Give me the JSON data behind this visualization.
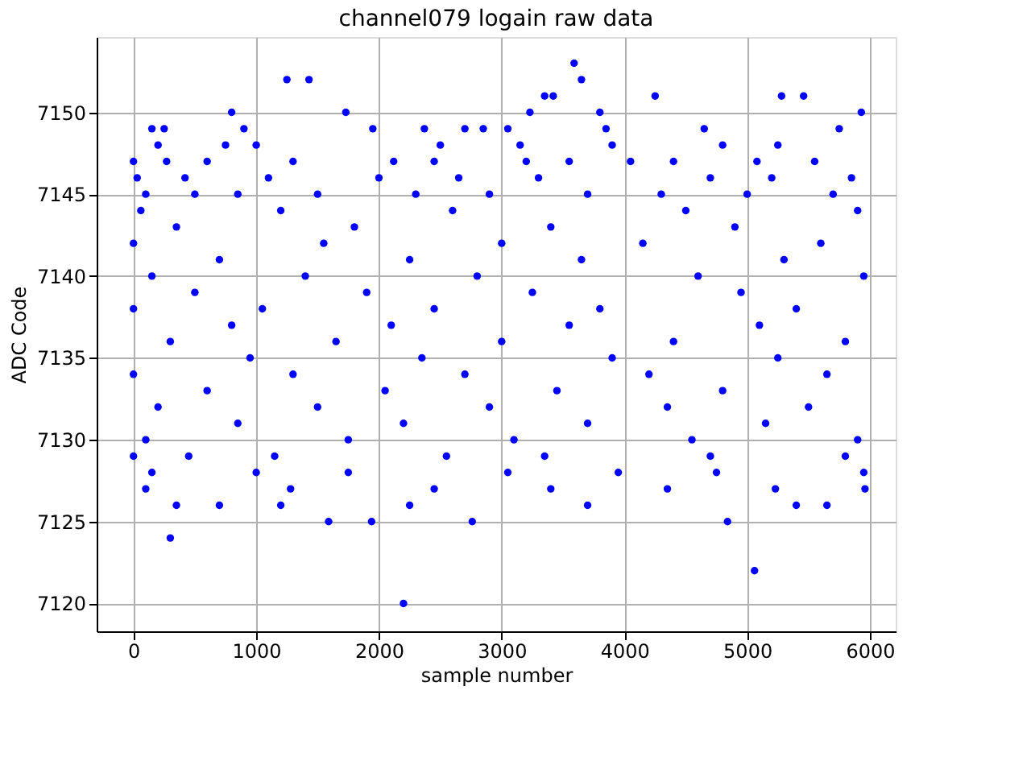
{
  "chart_data": {
    "type": "scatter",
    "title": "channel079 logain raw data",
    "xlabel": "sample number",
    "ylabel": "ADC Code",
    "xlim": [
      -300,
      6210
    ],
    "xticks": [
      0,
      1000,
      2000,
      3000,
      4000,
      5000,
      6000
    ],
    "ylim": [
      7118.3,
      7154.6
    ],
    "yticks": [
      7120,
      7125,
      7130,
      7135,
      7140,
      7145,
      7150
    ],
    "grid": true,
    "marker": "circle",
    "series": [
      {
        "color": "#0000ff",
        "x": [
          300,
          2200,
          5060,
          1590,
          1940,
          2760,
          4840,
          3590,
          1250,
          1430,
          3650,
          3350,
          3420,
          4250,
          5280,
          5460,
          5930,
          800,
          1730,
          3230,
          3800,
          150,
          250,
          900,
          1950,
          2370,
          2700,
          2850,
          3050,
          3850,
          4650,
          5750,
          200,
          750,
          1000,
          2500,
          3150,
          3900,
          4800,
          5250,
          0,
          270,
          600,
          1300,
          2120,
          2450,
          3200,
          3550,
          4050,
          4400,
          5080,
          5550,
          30,
          420,
          1100,
          2000,
          2650,
          3300,
          4700,
          5200,
          5850,
          100,
          500,
          850,
          1500,
          2300,
          2900,
          3700,
          4300,
          5000,
          5700,
          60,
          1200,
          2600,
          4500,
          5900,
          350,
          1800,
          3400,
          4900,
          0,
          1550,
          3000,
          4150,
          5600,
          700,
          2250,
          3650,
          5300,
          150,
          1400,
          2800,
          4600,
          5950,
          500,
          1900,
          3250,
          4950,
          0,
          1050,
          2450,
          3800,
          5400,
          800,
          2100,
          3550,
          5100,
          300,
          1650,
          3000,
          4400,
          5800,
          950,
          2350,
          3900,
          5250,
          0,
          1300,
          2700,
          4200,
          5650,
          600,
          2050,
          3450,
          4800,
          200,
          1500,
          2900,
          4350,
          5500,
          850,
          2200,
          3700,
          5150,
          100,
          1750,
          3100,
          4550,
          5900,
          0,
          450,
          1150,
          2550,
          3350,
          4700,
          5800,
          150,
          1000,
          1750,
          3050,
          3950,
          4750,
          5950,
          100,
          1280,
          2450,
          3400,
          4350,
          5230,
          5960,
          350,
          700,
          1200,
          2250,
          3700,
          5400,
          5650
        ],
        "values": [
          7124,
          7120,
          7122,
          7125,
          7125,
          7125,
          7125,
          7153,
          7152,
          7152,
          7152,
          7151,
          7151,
          7151,
          7151,
          7151,
          7150,
          7150,
          7150,
          7150,
          7150,
          7149,
          7149,
          7149,
          7149,
          7149,
          7149,
          7149,
          7149,
          7149,
          7149,
          7149,
          7148,
          7148,
          7148,
          7148,
          7148,
          7148,
          7148,
          7148,
          7147,
          7147,
          7147,
          7147,
          7147,
          7147,
          7147,
          7147,
          7147,
          7147,
          7147,
          7147,
          7146,
          7146,
          7146,
          7146,
          7146,
          7146,
          7146,
          7146,
          7146,
          7145,
          7145,
          7145,
          7145,
          7145,
          7145,
          7145,
          7145,
          7145,
          7145,
          7144,
          7144,
          7144,
          7144,
          7144,
          7143,
          7143,
          7143,
          7143,
          7142,
          7142,
          7142,
          7142,
          7142,
          7141,
          7141,
          7141,
          7141,
          7140,
          7140,
          7140,
          7140,
          7140,
          7139,
          7139,
          7139,
          7139,
          7138,
          7138,
          7138,
          7138,
          7138,
          7137,
          7137,
          7137,
          7137,
          7136,
          7136,
          7136,
          7136,
          7136,
          7135,
          7135,
          7135,
          7135,
          7134,
          7134,
          7134,
          7134,
          7134,
          7133,
          7133,
          7133,
          7133,
          7132,
          7132,
          7132,
          7132,
          7132,
          7131,
          7131,
          7131,
          7131,
          7130,
          7130,
          7130,
          7130,
          7130,
          7129,
          7129,
          7129,
          7129,
          7129,
          7129,
          7129,
          7128,
          7128,
          7128,
          7128,
          7128,
          7128,
          7128,
          7127,
          7127,
          7127,
          7127,
          7127,
          7127,
          7127,
          7126,
          7126,
          7126,
          7126,
          7126,
          7126,
          7126
        ]
      }
    ]
  }
}
